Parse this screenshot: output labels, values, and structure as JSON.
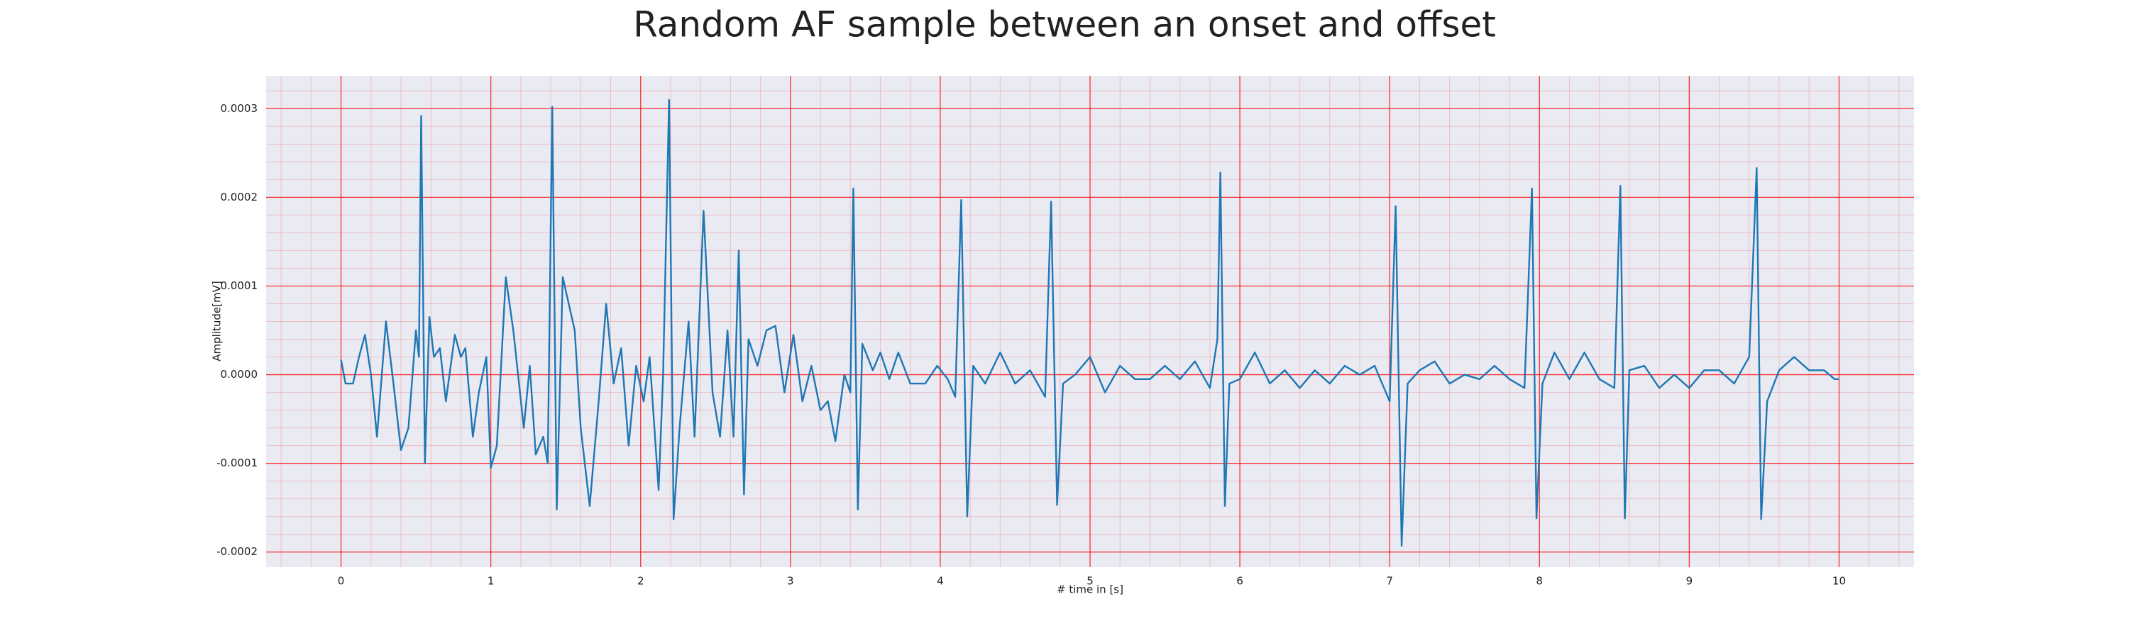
{
  "chart_data": {
    "type": "line",
    "title": "Random AF sample between an onset and offset",
    "xlabel": "# time in [s]",
    "ylabel": "Amplitude[mV]",
    "color": "#1f77b4",
    "grid": true,
    "grid_color": "#ff0000",
    "background": "#eaeaf2",
    "xlim": [
      -0.5,
      10.5
    ],
    "xticks": [
      0,
      1,
      2,
      3,
      4,
      5,
      6,
      7,
      8,
      9,
      10
    ],
    "ylim": [
      -0.000217,
      0.000337
    ],
    "yticks": [
      -0.0002,
      -0.0001,
      {
        "value": 0,
        "label": "0.0000"
      },
      0.0001,
      0.0002,
      0.0003
    ],
    "x": [
      0,
      0.03,
      0.08,
      0.12,
      0.16,
      0.2,
      0.24,
      0.3,
      0.35,
      0.4,
      0.45,
      0.5,
      0.52,
      0.535,
      0.56,
      0.59,
      0.62,
      0.66,
      0.7,
      0.76,
      0.8,
      0.83,
      0.88,
      0.92,
      0.97,
      1.0,
      1.04,
      1.1,
      1.15,
      1.22,
      1.26,
      1.3,
      1.35,
      1.38,
      1.41,
      1.44,
      1.48,
      1.52,
      1.56,
      1.6,
      1.66,
      1.72,
      1.77,
      1.82,
      1.87,
      1.92,
      1.97,
      2.02,
      2.06,
      2.12,
      2.15,
      2.19,
      2.22,
      2.26,
      2.32,
      2.36,
      2.42,
      2.48,
      2.53,
      2.58,
      2.62,
      2.655,
      2.69,
      2.72,
      2.78,
      2.84,
      2.9,
      2.96,
      3.02,
      3.08,
      3.14,
      3.2,
      3.25,
      3.3,
      3.36,
      3.4,
      3.42,
      3.45,
      3.48,
      3.55,
      3.6,
      3.66,
      3.72,
      3.8,
      3.9,
      3.98,
      4.05,
      4.1,
      4.14,
      4.18,
      4.22,
      4.3,
      4.4,
      4.5,
      4.6,
      4.7,
      4.74,
      4.78,
      4.82,
      4.9,
      5.0,
      5.1,
      5.2,
      5.3,
      5.4,
      5.5,
      5.6,
      5.7,
      5.8,
      5.85,
      5.87,
      5.9,
      5.93,
      6.0,
      6.1,
      6.2,
      6.3,
      6.4,
      6.5,
      6.6,
      6.7,
      6.8,
      6.9,
      7.0,
      7.04,
      7.08,
      7.12,
      7.2,
      7.3,
      7.4,
      7.5,
      7.6,
      7.7,
      7.8,
      7.9,
      7.95,
      7.98,
      8.02,
      8.1,
      8.2,
      8.3,
      8.4,
      8.5,
      8.54,
      8.57,
      8.6,
      8.7,
      8.8,
      8.9,
      9.0,
      9.1,
      9.2,
      9.3,
      9.4,
      9.45,
      9.48,
      9.52,
      9.6,
      9.7,
      9.8,
      9.9,
      9.97,
      10.0
    ],
    "values": [
      1.7e-05,
      -1e-05,
      -1e-05,
      2e-05,
      4.5e-05,
      0,
      -7e-05,
      6e-05,
      -1e-05,
      -8.5e-05,
      -6e-05,
      5e-05,
      2e-05,
      0.000292,
      -0.0001,
      6.5e-05,
      2e-05,
      3e-05,
      -3e-05,
      4.5e-05,
      2e-05,
      3e-05,
      -7e-05,
      -2e-05,
      2e-05,
      -0.000105,
      -8e-05,
      0.00011,
      5e-05,
      -6e-05,
      1e-05,
      -9e-05,
      -7e-05,
      -0.0001,
      0.000302,
      -0.000152,
      0.00011,
      8e-05,
      5e-05,
      -6e-05,
      -0.000148,
      -3e-05,
      8e-05,
      -1e-05,
      3e-05,
      -8e-05,
      1e-05,
      -3e-05,
      2e-05,
      -0.00013,
      0,
      0.00031,
      -0.000163,
      -6e-05,
      6e-05,
      -7e-05,
      0.000185,
      -2e-05,
      -7e-05,
      5e-05,
      -7e-05,
      0.00014,
      -0.000135,
      4e-05,
      1e-05,
      5e-05,
      5.5e-05,
      -2e-05,
      4.5e-05,
      -3e-05,
      1e-05,
      -4e-05,
      -3e-05,
      -7.5e-05,
      0,
      -2e-05,
      0.00021,
      -0.000152,
      3.5e-05,
      5e-06,
      2.5e-05,
      -5e-06,
      2.5e-05,
      -1e-05,
      -1e-05,
      1e-05,
      -5e-06,
      -2.5e-05,
      0.000197,
      -0.00016,
      1e-05,
      -1e-05,
      2.5e-05,
      -1e-05,
      5e-06,
      -2.5e-05,
      0.000195,
      -0.000147,
      -1e-05,
      0,
      2e-05,
      -2e-05,
      1e-05,
      -5e-06,
      -5e-06,
      1e-05,
      -5e-06,
      1.5e-05,
      -1.5e-05,
      4e-05,
      0.000228,
      -0.000148,
      -1e-05,
      -5e-06,
      2.5e-05,
      -1e-05,
      5e-06,
      -1.5e-05,
      5e-06,
      -1e-05,
      1e-05,
      0,
      1e-05,
      -3e-05,
      0.00019,
      -0.000193,
      -1e-05,
      5e-06,
      1.5e-05,
      -1e-05,
      0,
      -5e-06,
      1e-05,
      -5e-06,
      -1.5e-05,
      0.00021,
      -0.000162,
      -1e-05,
      2.5e-05,
      -5e-06,
      2.5e-05,
      -5e-06,
      -1.5e-05,
      0.000213,
      -0.000162,
      5e-06,
      1e-05,
      -1.5e-05,
      0,
      -1.5e-05,
      5e-06,
      5e-06,
      -1e-05,
      2e-05,
      0.000233,
      -0.000163,
      -3e-05,
      5e-06,
      2e-05,
      5e-06,
      5e-06,
      -5e-06,
      -5e-06
    ]
  }
}
